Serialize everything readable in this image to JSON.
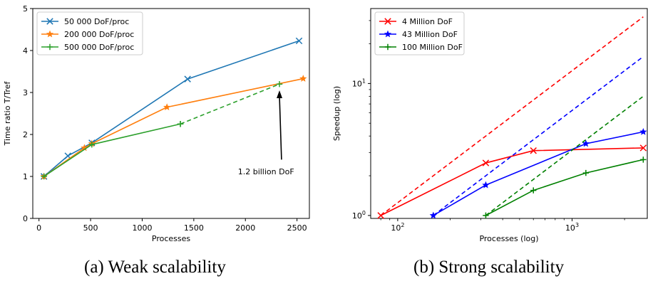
{
  "chart_data": [
    {
      "type": "line",
      "caption": "(a) Weak scalability",
      "xlabel": "Processes",
      "ylabel": "Time ratio T/Tref",
      "xlim": [
        -60,
        2620
      ],
      "ylim": [
        0,
        5
      ],
      "x_ticks": [
        0,
        500,
        1000,
        1500,
        2000,
        2500
      ],
      "y_ticks": [
        0,
        1,
        2,
        3,
        4,
        5
      ],
      "grid": false,
      "legend": "top-left",
      "series": [
        {
          "name": "50 000 DoF/proc",
          "color": "#1f77b4",
          "marker": "x",
          "x": [
            48,
            280,
            512,
            1440,
            2520
          ],
          "y": [
            1.0,
            1.49,
            1.8,
            3.32,
            4.23
          ]
        },
        {
          "name": "200 000 DoF/proc",
          "color": "#ff7f0e",
          "marker": "star",
          "x": [
            48,
            440,
            512,
            1240,
            2560
          ],
          "y": [
            1.0,
            1.68,
            1.78,
            2.65,
            3.33
          ]
        },
        {
          "name": "500 000 DoF/proc",
          "color": "#2ca02c",
          "marker": "plus",
          "x": [
            48,
            512,
            1370
          ],
          "y": [
            1.0,
            1.76,
            2.25
          ]
        },
        {
          "name": "",
          "color": "#2ca02c",
          "marker": "plus",
          "dashed": true,
          "x": [
            1370,
            2330
          ],
          "y": [
            2.25,
            3.2
          ]
        }
      ],
      "annotations": [
        {
          "text": "1.2 billion DoF",
          "x": 2200,
          "y": 1.05,
          "arrow_from": [
            2350,
            1.4
          ],
          "arrow_to": [
            2330,
            3.05
          ]
        }
      ]
    },
    {
      "type": "line",
      "caption": "(b) Strong scalability",
      "xlabel": "Processes (log)",
      "ylabel": "Speedup (log)",
      "xscale": "log",
      "yscale": "log",
      "xlim": [
        70,
        2700
      ],
      "ylim": [
        0.95,
        37
      ],
      "x_ticks": [
        {
          "value": 100,
          "label": "10^2"
        },
        {
          "value": 1000,
          "label": "10^3"
        }
      ],
      "y_ticks": [
        {
          "value": 1,
          "label": "10^0"
        },
        {
          "value": 10,
          "label": "10^1"
        }
      ],
      "grid": false,
      "legend": "top-left",
      "series": [
        {
          "name": "4 Million DoF",
          "color": "#ff0000",
          "marker": "x",
          "x": [
            80,
            320,
            600,
            2560
          ],
          "y": [
            1.0,
            2.5,
            3.1,
            3.25
          ]
        },
        {
          "name": "",
          "color": "#ff0000",
          "dashed": true,
          "x": [
            80,
            2560
          ],
          "y": [
            1.0,
            32
          ]
        },
        {
          "name": "43 Million DoF",
          "color": "#0000ff",
          "marker": "star",
          "x": [
            160,
            320,
            1200,
            2560
          ],
          "y": [
            1.0,
            1.7,
            3.5,
            4.3
          ]
        },
        {
          "name": "",
          "color": "#0000ff",
          "dashed": true,
          "x": [
            160,
            2560
          ],
          "y": [
            1.0,
            16
          ]
        },
        {
          "name": "100 Million DoF",
          "color": "#008000",
          "marker": "plus",
          "x": [
            320,
            600,
            1200,
            2560
          ],
          "y": [
            1.0,
            1.55,
            2.1,
            2.65
          ]
        },
        {
          "name": "",
          "color": "#008000",
          "dashed": true,
          "x": [
            320,
            2560
          ],
          "y": [
            1.0,
            8
          ]
        }
      ]
    }
  ]
}
